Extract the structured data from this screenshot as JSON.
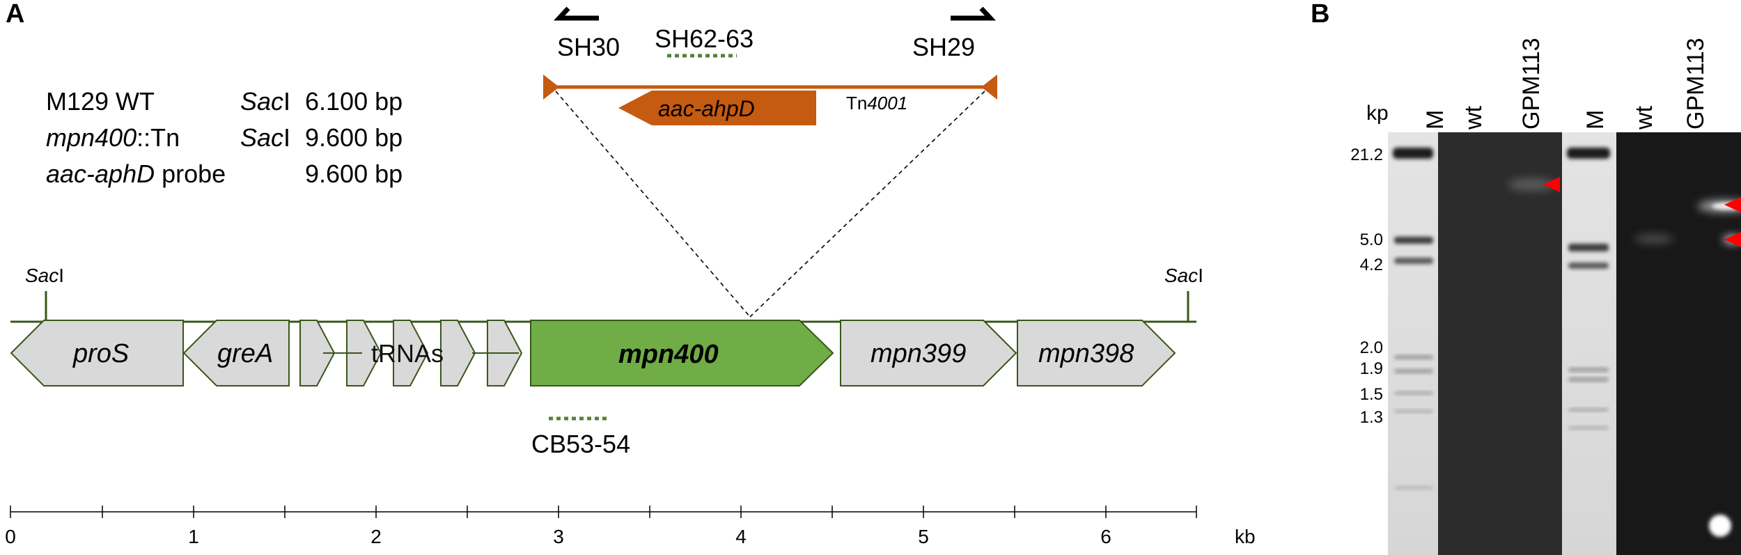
{
  "panels": {
    "a_label": "A",
    "b_label": "B"
  },
  "info_table": {
    "rows": [
      {
        "strain_pre": "M129 WT",
        "strain_it": "",
        "strain_post": "",
        "enz_it": "Sac",
        "enz_post": "I",
        "size": "6.100 bp"
      },
      {
        "strain_pre": "",
        "strain_it": "mpn400",
        "strain_post": "::Tn",
        "enz_it": "Sac",
        "enz_post": "I",
        "size": "9.600 bp"
      },
      {
        "strain_pre": "",
        "strain_it": "aac-aphD",
        "strain_post": " probe",
        "enz_it": "",
        "enz_post": "",
        "size": "9.600 bp"
      }
    ]
  },
  "transposon": {
    "gene_label": "aac-ahpD",
    "name_prefix": "Tn",
    "name_num": "4001",
    "primer_left": "SH30",
    "primer_right": "SH29",
    "probe": "SH62-63",
    "color": "#c55a11"
  },
  "sites": {
    "left_it": "Sac",
    "left_post": "I",
    "right_it": "Sac",
    "right_post": "I"
  },
  "genes": {
    "proS": "proS",
    "greA": "greA",
    "trnas": "tRNAs",
    "mpn400": "mpn400",
    "mpn399": "mpn399",
    "mpn398": "mpn398",
    "probe_below": "CB53-54",
    "grey": "#d9d9d9",
    "outline": "#38571a",
    "target": "#70ad47"
  },
  "axis": {
    "ticks": [
      "0",
      "1",
      "2",
      "3",
      "4",
      "5",
      "6"
    ],
    "unit": "kb"
  },
  "gel": {
    "unit": "kp",
    "lanes": [
      "M",
      "wt",
      "GPM113",
      "M",
      "wt",
      "GPM113"
    ],
    "markers": [
      "21.2",
      "5.0",
      "4.2",
      "2.0",
      "1.9",
      "1.5",
      "1.3"
    ],
    "arrow_color": "#ff0000"
  }
}
